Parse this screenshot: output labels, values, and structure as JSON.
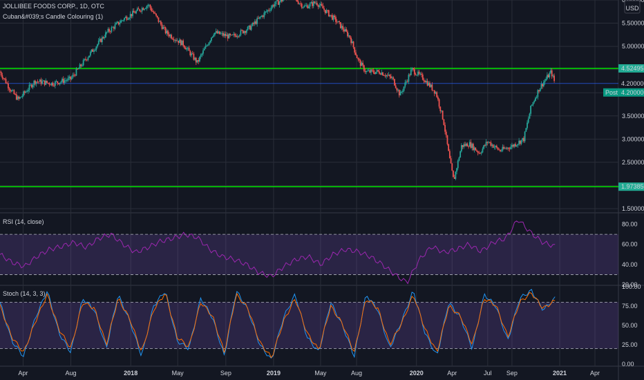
{
  "header": {
    "title": "JOLLIBEE FOODS CORP., 1D, OTC",
    "indicator": "Cuban&#039;s Candle Colouring (1)",
    "currency": "USD"
  },
  "colors": {
    "background": "#131722",
    "grid": "#2a2e39",
    "bullish": "#26a69a",
    "bearish": "#ef5350",
    "green_line": "#00e600",
    "blue_line": "#2962ff",
    "rsi_line": "#9c27b0",
    "rsi_band": "#7e57c2",
    "stoch_k": "#2196f3",
    "stoch_d": "#ff6d00",
    "label_teal": "#089981"
  },
  "chart_data": [
    {
      "type": "candlestick",
      "title": "JOLLIBEE FOODS CORP., 1D, OTC",
      "ylim": [
        1.5,
        6.0
      ],
      "y_ticks": [
        "1.500000",
        "2.000000",
        "2.500000",
        "3.000000",
        "3.500000",
        "4.000000",
        "4.500000",
        "5.000000",
        "5.500000",
        "6.000000"
      ],
      "x_ticks": [
        "Apr",
        "Aug",
        "2018",
        "May",
        "Sep",
        "2019",
        "May",
        "Aug",
        "2020",
        "Apr",
        "Jul",
        "Sep",
        "2021",
        "Apr"
      ],
      "xlim": [
        "2017-02-01",
        "2021-05-31"
      ],
      "horizontal_lines": [
        {
          "value": 4.524959,
          "label": "4.524959",
          "color": "#00e600"
        },
        {
          "value": 4.2,
          "label": "4.200000",
          "color": "#2962ff"
        },
        {
          "value": 1.97385,
          "label": "1.973850",
          "color": "#00e600"
        }
      ],
      "last_price": {
        "value": 4.2,
        "label": "4.200000",
        "tag": "Post"
      },
      "price_path": [
        [
          "2017-02-01",
          4.45
        ],
        [
          "2017-03-01",
          4.05
        ],
        [
          "2017-03-20",
          3.85
        ],
        [
          "2017-05-01",
          4.25
        ],
        [
          "2017-06-15",
          4.2
        ],
        [
          "2017-08-01",
          4.3
        ],
        [
          "2017-09-15",
          4.8
        ],
        [
          "2017-11-01",
          5.3
        ],
        [
          "2017-12-15",
          5.6
        ],
        [
          "2018-02-15",
          5.9
        ],
        [
          "2018-04-01",
          5.3
        ],
        [
          "2018-05-15",
          5.05
        ],
        [
          "2018-06-20",
          4.65
        ],
        [
          "2018-08-01",
          5.3
        ],
        [
          "2018-09-15",
          5.2
        ],
        [
          "2018-11-01",
          5.4
        ],
        [
          "2019-01-01",
          5.9
        ],
        [
          "2019-02-15",
          6.1
        ],
        [
          "2019-03-20",
          5.85
        ],
        [
          "2019-04-20",
          5.95
        ],
        [
          "2019-06-10",
          5.55
        ],
        [
          "2019-07-15",
          5.2
        ],
        [
          "2019-08-05",
          4.7
        ],
        [
          "2019-08-25",
          4.45
        ],
        [
          "2019-10-01",
          4.45
        ],
        [
          "2019-11-01",
          4.3
        ],
        [
          "2019-11-20",
          3.95
        ],
        [
          "2019-12-20",
          4.5
        ],
        [
          "2020-01-20",
          4.3
        ],
        [
          "2020-02-20",
          4.0
        ],
        [
          "2020-03-10",
          3.4
        ],
        [
          "2020-03-25",
          2.6
        ],
        [
          "2020-04-05",
          2.1
        ],
        [
          "2020-04-25",
          2.85
        ],
        [
          "2020-05-15",
          2.9
        ],
        [
          "2020-06-10",
          2.7
        ],
        [
          "2020-07-01",
          2.95
        ],
        [
          "2020-08-01",
          2.75
        ],
        [
          "2020-09-01",
          2.85
        ],
        [
          "2020-10-01",
          3.0
        ],
        [
          "2020-10-20",
          3.7
        ],
        [
          "2020-11-10",
          4.1
        ],
        [
          "2020-12-10",
          4.45
        ],
        [
          "2020-12-20",
          4.2
        ]
      ]
    },
    {
      "type": "line",
      "title": "RSI (14, close)",
      "ylim": [
        20,
        90
      ],
      "y_ticks": [
        "20.00",
        "40.00",
        "60.00",
        "80.00"
      ],
      "bands": [
        30,
        70
      ],
      "series": [
        {
          "values": [
            50,
            42,
            38,
            48,
            55,
            58,
            62,
            57,
            66,
            70,
            60,
            52,
            57,
            63,
            66,
            70,
            67,
            55,
            48,
            45,
            40,
            32,
            28,
            38,
            45,
            48,
            40,
            50,
            55,
            53,
            48,
            40,
            30,
            22,
            45,
            58,
            52,
            55,
            60,
            53,
            62,
            66,
            85,
            72,
            62,
            58
          ]
        }
      ]
    },
    {
      "type": "line",
      "title": "Stoch (14, 3, 3)",
      "ylim": [
        0,
        100
      ],
      "y_ticks": [
        "0.00",
        "25.00",
        "50.00",
        "75.00",
        "100.00"
      ],
      "bands": [
        20,
        80
      ],
      "series": [
        {
          "name": "%K",
          "values": [
            80,
            30,
            10,
            60,
            95,
            40,
            15,
            85,
            70,
            20,
            90,
            55,
            10,
            75,
            95,
            30,
            20,
            85,
            60,
            10,
            95,
            70,
            25,
            5,
            60,
            90,
            35,
            15,
            80,
            50,
            10,
            90,
            70,
            20,
            55,
            95,
            40,
            10,
            80,
            60,
            20,
            90,
            75,
            30,
            85,
            95,
            70,
            85
          ]
        },
        {
          "name": "%D",
          "values": [
            75,
            35,
            15,
            55,
            90,
            45,
            20,
            80,
            72,
            25,
            85,
            58,
            15,
            70,
            92,
            35,
            22,
            80,
            62,
            15,
            90,
            72,
            28,
            8,
            55,
            85,
            40,
            18,
            75,
            52,
            15,
            85,
            72,
            25,
            52,
            90,
            45,
            15,
            75,
            62,
            25,
            85,
            76,
            35,
            80,
            92,
            72,
            82
          ]
        }
      ]
    }
  ]
}
